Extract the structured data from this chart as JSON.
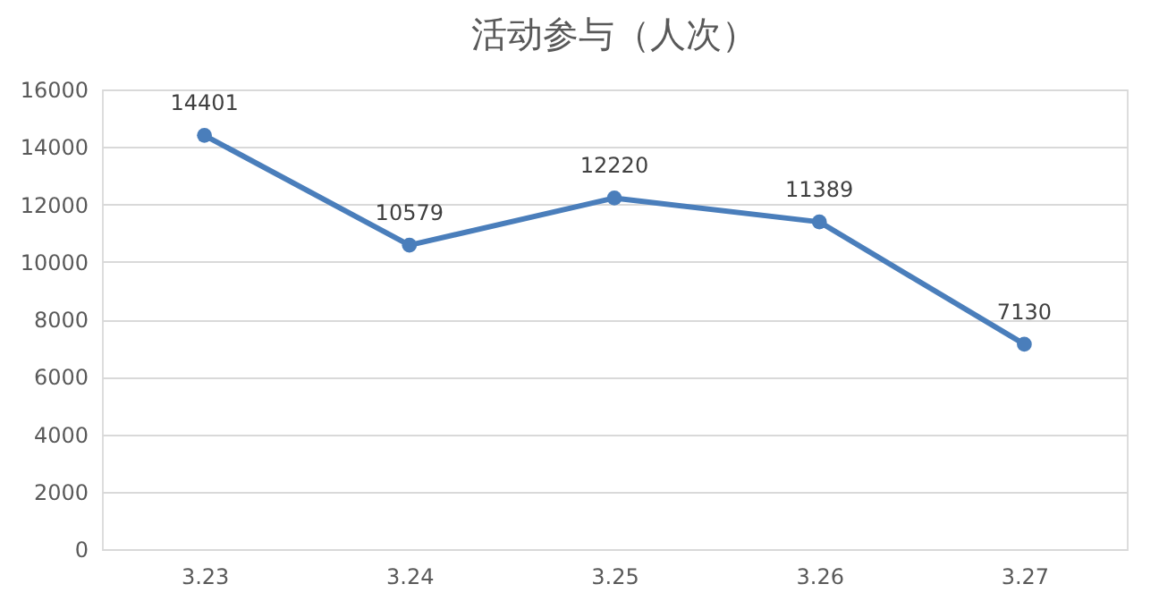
{
  "chart_data": {
    "type": "line",
    "title": "活动参与（人次）",
    "categories": [
      "3.23",
      "3.24",
      "3.25",
      "3.26",
      "3.27"
    ],
    "series": [
      {
        "color": "#4a7ebb",
        "values": [
          14401,
          10579,
          12220,
          11389,
          7130
        ]
      }
    ],
    "ylim": [
      0,
      16000
    ],
    "yticks": [
      0,
      2000,
      4000,
      6000,
      8000,
      10000,
      12000,
      14000,
      16000
    ],
    "grid": "y",
    "marker": "circle",
    "line_style": "solid",
    "data_labels": true,
    "legend": false
  }
}
